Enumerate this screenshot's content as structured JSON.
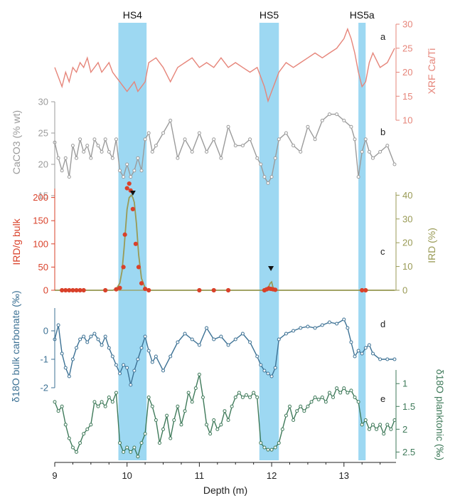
{
  "chart_data": {
    "type": "line",
    "xlabel": "Depth (m)",
    "xlim": [
      9.0,
      13.72
    ],
    "xticks": [
      "9",
      "10",
      "11",
      "12",
      "13"
    ],
    "colors": {
      "shade": "#9dd8f2",
      "xrf": "#e6857a",
      "caco3": "#9b9b9b",
      "ird_count": "#d9412a",
      "ird_pct": "#999a55",
      "d18o_bulk": "#3c7194",
      "d18o_plank": "#3f7a5a"
    },
    "events": [
      {
        "label": "HS4",
        "from": 9.88,
        "to": 10.27
      },
      {
        "label": "HS5",
        "from": 11.83,
        "to": 12.1
      },
      {
        "label": "HS5a",
        "from": 13.2,
        "to": 13.3
      }
    ],
    "markers": [
      {
        "name": "ird-peak-hs4",
        "x": 10.08
      },
      {
        "name": "ird-peak-hs5",
        "x": 11.99
      }
    ],
    "panels": {
      "a": {
        "letter": "a",
        "ylabel": "XRF Ca/Ti",
        "ylim": [
          10,
          30
        ],
        "yticks": [
          "10",
          "15",
          "20",
          "25",
          "30"
        ],
        "x": [
          9.0,
          9.05,
          9.1,
          9.15,
          9.2,
          9.25,
          9.3,
          9.35,
          9.4,
          9.45,
          9.5,
          9.55,
          9.6,
          9.65,
          9.7,
          9.75,
          9.8,
          9.85,
          9.9,
          9.95,
          10.0,
          10.05,
          10.1,
          10.15,
          10.2,
          10.25,
          10.3,
          10.4,
          10.5,
          10.6,
          10.7,
          10.8,
          10.9,
          11.0,
          11.1,
          11.2,
          11.3,
          11.4,
          11.5,
          11.6,
          11.7,
          11.8,
          11.85,
          11.9,
          11.95,
          12.0,
          12.05,
          12.1,
          12.2,
          12.3,
          12.4,
          12.5,
          12.6,
          12.7,
          12.8,
          12.9,
          13.0,
          13.05,
          13.1,
          13.15,
          13.2,
          13.25,
          13.3,
          13.35,
          13.4,
          13.5,
          13.6,
          13.7
        ],
        "y": [
          21,
          19,
          17,
          20,
          18,
          21,
          20,
          22,
          21,
          23,
          20,
          21,
          22,
          20,
          21,
          22,
          20,
          19,
          18,
          17,
          16,
          17,
          18,
          16,
          17,
          18,
          22,
          23,
          21,
          18,
          21,
          22,
          23,
          21,
          22,
          21,
          23,
          21,
          22,
          21,
          20,
          21,
          19,
          17,
          14,
          16,
          18,
          20,
          22,
          21,
          22,
          23,
          24,
          23,
          24,
          25,
          27,
          29,
          27,
          24,
          20,
          17,
          18,
          22,
          24,
          21,
          22,
          25
        ]
      },
      "b": {
        "letter": "b",
        "ylabel": "CaCO3 (% wt)",
        "ylim": [
          15,
          30
        ],
        "yticks": [
          "15",
          "20",
          "25",
          "30"
        ],
        "x": [
          9.0,
          9.05,
          9.1,
          9.15,
          9.2,
          9.25,
          9.3,
          9.35,
          9.4,
          9.45,
          9.5,
          9.55,
          9.6,
          9.65,
          9.7,
          9.75,
          9.8,
          9.85,
          9.9,
          9.95,
          10.0,
          10.05,
          10.1,
          10.15,
          10.2,
          10.25,
          10.3,
          10.35,
          10.4,
          10.5,
          10.6,
          10.7,
          10.8,
          10.9,
          11.0,
          11.1,
          11.2,
          11.3,
          11.4,
          11.5,
          11.6,
          11.7,
          11.8,
          11.85,
          11.9,
          11.95,
          12.0,
          12.05,
          12.1,
          12.2,
          12.3,
          12.4,
          12.5,
          12.6,
          12.7,
          12.8,
          12.9,
          13.0,
          13.1,
          13.15,
          13.2,
          13.25,
          13.3,
          13.35,
          13.4,
          13.5,
          13.6,
          13.7
        ],
        "y": [
          23.5,
          21,
          19,
          21,
          18,
          23,
          21,
          24,
          22,
          23,
          21,
          24,
          23,
          22,
          24,
          22,
          21,
          24,
          19,
          18,
          20,
          18,
          19,
          21,
          19,
          24,
          25,
          22,
          23,
          25,
          27,
          21,
          24,
          22,
          25,
          22,
          24,
          21,
          26,
          23,
          23,
          24,
          21,
          20,
          18,
          17,
          18,
          21,
          24,
          25,
          23,
          22,
          26,
          24,
          27,
          28,
          28,
          27,
          26,
          24,
          18,
          22,
          24,
          22,
          21,
          22,
          23,
          20
        ]
      },
      "c": {
        "letter": "c",
        "ylabel": "IRD/g bulk",
        "ylabel_right": "IRD (%)",
        "ylim": [
          0,
          250
        ],
        "yticks": [
          "0",
          "50",
          "100",
          "150",
          "200"
        ],
        "ylim_right": [
          0,
          44
        ],
        "yticks_right": [
          "0",
          "10",
          "20",
          "30",
          "40"
        ],
        "count_x": [
          9.1,
          9.15,
          9.2,
          9.25,
          9.3,
          9.35,
          9.4,
          9.7,
          9.85,
          9.9,
          9.95,
          9.97,
          10.0,
          10.03,
          10.05,
          10.08,
          10.12,
          10.16,
          10.2,
          10.25,
          10.3,
          11.0,
          11.2,
          11.4,
          11.9,
          11.93,
          11.96,
          11.99,
          12.02,
          12.05,
          13.25,
          13.3
        ],
        "count_y": [
          0,
          0,
          0,
          0,
          0,
          0,
          0,
          0,
          2,
          5,
          50,
          120,
          220,
          230,
          215,
          175,
          100,
          50,
          15,
          3,
          0,
          0,
          0,
          0,
          0,
          2,
          4,
          3,
          2,
          1,
          0,
          0
        ],
        "pct_x": [
          9.0,
          9.8,
          9.85,
          9.9,
          9.93,
          9.96,
          10.0,
          10.03,
          10.06,
          10.08,
          10.1,
          10.13,
          10.16,
          10.2,
          10.25,
          10.3,
          11.9,
          11.95,
          11.98,
          12.0,
          12.02,
          12.05,
          12.1,
          13.7
        ],
        "pct_y": [
          0,
          0,
          0.5,
          3,
          8,
          18,
          34,
          39,
          40,
          39,
          37,
          28,
          15,
          5,
          1,
          0,
          0,
          1,
          3,
          3.5,
          1,
          0,
          0,
          0
        ]
      },
      "d": {
        "letter": "d",
        "ylabel": "δ18O bulk carbonate (‰)",
        "ylim": [
          -2.3,
          0.8
        ],
        "yticks": [
          "0",
          "-1",
          "-2"
        ],
        "x": [
          9.0,
          9.05,
          9.1,
          9.15,
          9.2,
          9.25,
          9.3,
          9.35,
          9.4,
          9.45,
          9.5,
          9.55,
          9.6,
          9.65,
          9.7,
          9.75,
          9.8,
          9.85,
          9.9,
          9.95,
          10.0,
          10.05,
          10.1,
          10.15,
          10.2,
          10.25,
          10.3,
          10.35,
          10.4,
          10.5,
          10.6,
          10.7,
          10.8,
          10.9,
          11.0,
          11.1,
          11.2,
          11.3,
          11.4,
          11.5,
          11.6,
          11.7,
          11.8,
          11.85,
          11.9,
          11.95,
          12.0,
          12.05,
          12.1,
          12.2,
          12.3,
          12.4,
          12.5,
          12.6,
          12.7,
          12.8,
          12.9,
          13.0,
          13.05,
          13.1,
          13.15,
          13.2,
          13.25,
          13.3,
          13.35,
          13.4,
          13.5,
          13.6,
          13.7
        ],
        "y": [
          -0.3,
          0.2,
          -0.8,
          -1.3,
          -1.6,
          -1.0,
          -0.6,
          -0.3,
          -0.2,
          -0.4,
          -0.2,
          -0.1,
          -0.3,
          -0.5,
          -0.2,
          -0.6,
          -0.9,
          -1.2,
          -1.5,
          -1.2,
          -1.3,
          -1.9,
          -1.4,
          -1.0,
          -0.6,
          -0.2,
          -0.7,
          -1.1,
          -0.9,
          -1.4,
          -0.9,
          -0.4,
          -0.1,
          -0.3,
          -0.5,
          0.1,
          -0.3,
          -0.2,
          -0.5,
          -0.3,
          -0.1,
          -0.4,
          -0.9,
          -1.2,
          -1.4,
          -1.5,
          -1.6,
          -1.3,
          -0.3,
          -0.1,
          0.0,
          0.1,
          0.15,
          0.1,
          0.2,
          0.3,
          0.25,
          0.4,
          0.1,
          -0.4,
          -0.9,
          -0.7,
          -0.8,
          -0.6,
          -0.5,
          -0.8,
          -1.0,
          -1.0,
          -1.0
        ]
      },
      "e": {
        "letter": "e",
        "ylabel": "δ18O planktonic (‰)",
        "ylim": [
          2.65,
          0.7
        ],
        "yticks": [
          "1",
          "1.5",
          "2",
          "2.5"
        ],
        "x": [
          9.0,
          9.05,
          9.1,
          9.15,
          9.2,
          9.25,
          9.3,
          9.35,
          9.4,
          9.45,
          9.5,
          9.55,
          9.6,
          9.65,
          9.7,
          9.75,
          9.8,
          9.85,
          9.9,
          9.95,
          10.0,
          10.05,
          10.1,
          10.15,
          10.2,
          10.25,
          10.3,
          10.35,
          10.4,
          10.45,
          10.5,
          10.55,
          10.6,
          10.65,
          10.7,
          10.75,
          10.8,
          10.85,
          10.9,
          10.95,
          11.0,
          11.05,
          11.1,
          11.15,
          11.2,
          11.25,
          11.3,
          11.35,
          11.4,
          11.45,
          11.5,
          11.55,
          11.6,
          11.65,
          11.7,
          11.75,
          11.8,
          11.85,
          11.9,
          11.95,
          12.0,
          12.05,
          12.1,
          12.15,
          12.2,
          12.25,
          12.3,
          12.35,
          12.4,
          12.45,
          12.5,
          12.55,
          12.6,
          12.65,
          12.7,
          12.75,
          12.8,
          12.85,
          12.9,
          12.95,
          13.0,
          13.05,
          13.1,
          13.15,
          13.2,
          13.25,
          13.3,
          13.35,
          13.4,
          13.45,
          13.5,
          13.55,
          13.6,
          13.65,
          13.7
        ],
        "y": [
          1.4,
          1.6,
          1.5,
          1.9,
          2.2,
          2.4,
          2.5,
          2.3,
          2.1,
          2.0,
          1.9,
          1.4,
          1.5,
          1.4,
          1.5,
          1.3,
          1.4,
          1.2,
          2.3,
          2.5,
          2.4,
          2.5,
          2.4,
          2.6,
          2.3,
          2.1,
          1.3,
          1.5,
          1.8,
          2.3,
          2.0,
          1.7,
          2.2,
          1.8,
          1.5,
          1.9,
          1.6,
          1.2,
          1.4,
          1.1,
          0.8,
          1.3,
          1.9,
          2.1,
          1.8,
          2.0,
          1.9,
          1.6,
          1.8,
          1.5,
          1.3,
          1.2,
          1.3,
          1.25,
          1.3,
          1.2,
          1.3,
          2.3,
          2.4,
          2.45,
          2.45,
          2.4,
          2.3,
          2.0,
          1.7,
          1.5,
          1.8,
          1.6,
          1.5,
          1.6,
          1.5,
          1.4,
          1.3,
          1.35,
          1.3,
          1.4,
          1.2,
          1.3,
          1.1,
          1.2,
          1.1,
          1.2,
          1.15,
          1.3,
          1.4,
          1.9,
          1.8,
          2.0,
          1.9,
          2.0,
          1.9,
          2.1,
          1.9,
          2.0,
          1.8
        ]
      }
    }
  }
}
